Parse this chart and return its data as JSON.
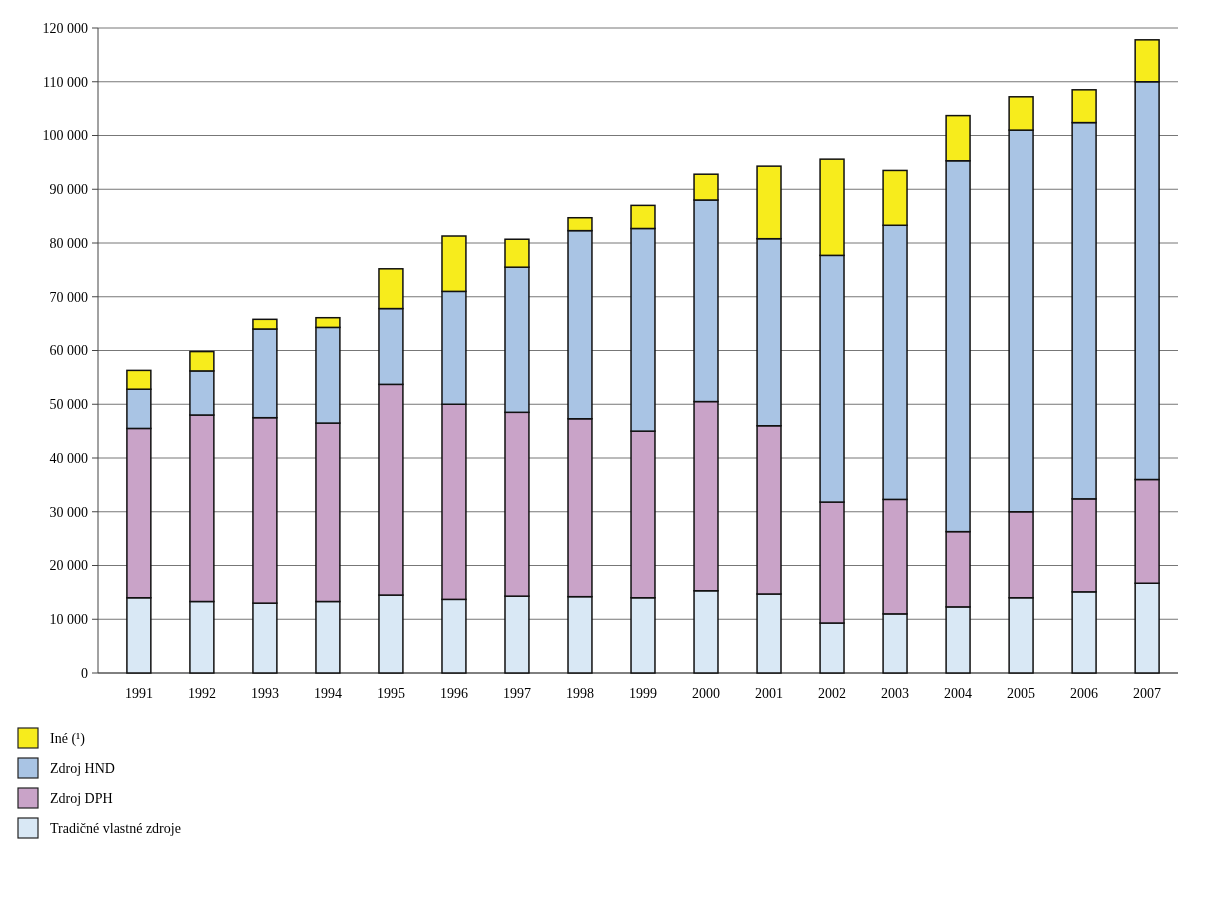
{
  "chart_data": {
    "type": "bar",
    "stacked": true,
    "grid": "y",
    "legend": "bottom left",
    "categories": [
      "1991",
      "1992",
      "1993",
      "1994",
      "1995",
      "1996",
      "1997",
      "1998",
      "1999",
      "2000",
      "2001",
      "2002",
      "2003",
      "2004",
      "2005",
      "2006",
      "2007"
    ],
    "series": [
      {
        "name": "Tradičné vlastné zdroje",
        "color": "#d9e8f5",
        "values": [
          14000,
          13300,
          13000,
          13300,
          14500,
          13700,
          14300,
          14200,
          14000,
          15300,
          14700,
          9300,
          11000,
          12300,
          14000,
          15100,
          16700
        ]
      },
      {
        "name": "Zdroj DPH",
        "color": "#c9a3c8",
        "values": [
          31500,
          34700,
          34500,
          33200,
          39200,
          36300,
          34200,
          33100,
          31000,
          35200,
          31300,
          22500,
          21300,
          14000,
          16000,
          17300,
          19300
        ]
      },
      {
        "name": "Zdroj HND",
        "color": "#a9c4e4",
        "values": [
          7300,
          8200,
          16500,
          17800,
          14100,
          21000,
          27000,
          35000,
          37700,
          37500,
          34800,
          45900,
          51000,
          69000,
          71000,
          70000,
          74000
        ]
      },
      {
        "name": "Iné (¹)",
        "color": "#f7ec1c",
        "values": [
          3500,
          3600,
          1800,
          1800,
          7400,
          10300,
          5200,
          2400,
          4300,
          4800,
          13500,
          17900,
          10200,
          8400,
          6200,
          6100,
          7800
        ]
      }
    ],
    "ylim": [
      0,
      120000
    ],
    "yticks": [
      0,
      {
        "value": 10000,
        "label": "10 000"
      },
      {
        "value": 20000,
        "label": "20 000"
      },
      {
        "value": 30000,
        "label": "30 000"
      },
      {
        "value": 40000,
        "label": "40 000"
      },
      {
        "value": 50000,
        "label": "50 000"
      },
      {
        "value": 60000,
        "label": "60 000"
      },
      {
        "value": 70000,
        "label": "70 000"
      },
      {
        "value": 80000,
        "label": "80 000"
      },
      {
        "value": 90000,
        "label": "90 000"
      },
      {
        "value": 100000,
        "label": "100 000"
      },
      {
        "value": 110000,
        "label": "110 000"
      },
      {
        "value": 120000,
        "label": "120 000"
      }
    ]
  }
}
